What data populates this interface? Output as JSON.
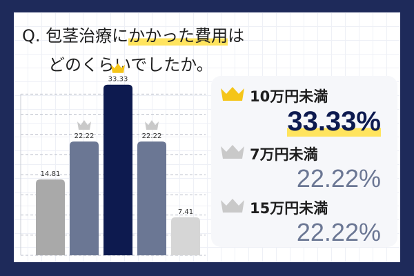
{
  "question": {
    "prefix": "Q. 包茎治療に",
    "highlight": "かかった費用",
    "suffix": "は",
    "line2": "どのくらいでしたか。"
  },
  "ranking": [
    {
      "rank": 1,
      "label": "10万円未満",
      "value": "33.33%",
      "crown": "gold-crown-icon",
      "value_color": "#0d1a4f"
    },
    {
      "rank": 2,
      "label": "7万円未満",
      "value": "22.22%",
      "crown": "silver-crown-icon",
      "value_color": "#6b7794"
    },
    {
      "rank": 3,
      "label": "15万円未満",
      "value": "22.22%",
      "crown": "silver-crown-icon",
      "value_color": "#6b7794"
    }
  ],
  "colors": {
    "frame": "#1e2a5a",
    "gold": "#f5c518",
    "silver": "#c9c9c9",
    "highlight": "#ffe45e",
    "bar_navy": "#0d1a4f",
    "bar_slate": "#6b7794",
    "bar_gray": "#a9a9a9",
    "bar_light": "#d6d6d6"
  },
  "chart_data": {
    "type": "bar",
    "values": [
      14.81,
      22.22,
      33.33,
      22.22,
      7.41
    ],
    "labels": [
      "14.81",
      "22.22",
      "33.33",
      "22.22",
      "7.41"
    ],
    "bar_colors": [
      "#a9a9a9",
      "#6b7794",
      "#0d1a4f",
      "#6b7794",
      "#d6d6d6"
    ],
    "crowns": [
      "",
      "silver",
      "gold",
      "silver",
      ""
    ],
    "ylim": [
      0,
      38
    ],
    "grid": true
  }
}
